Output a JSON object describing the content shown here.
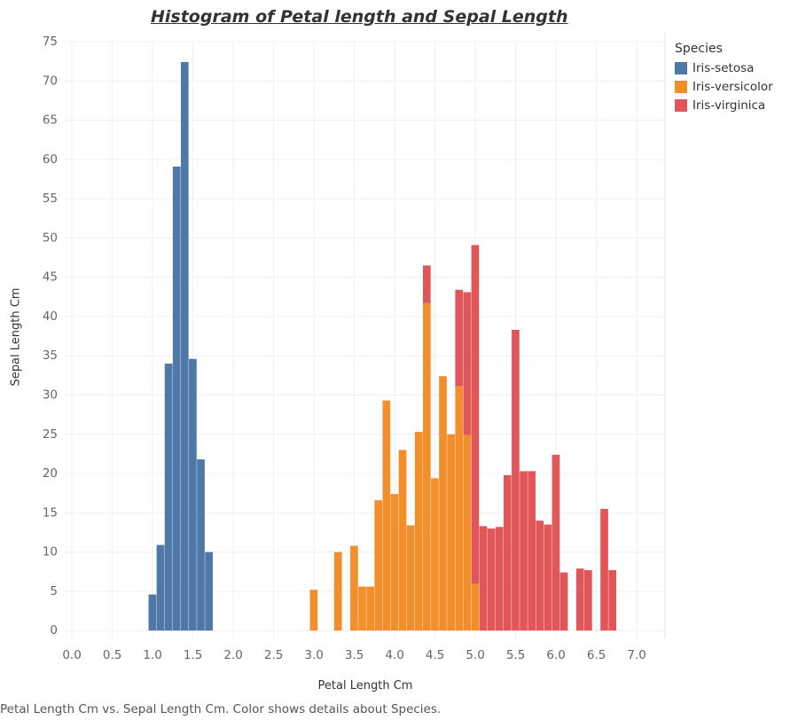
{
  "chart_data": {
    "type": "bar",
    "title": "Histogram of Petal length and Sepal Length",
    "xlabel": "Petal Length Cm",
    "ylabel": "Sepal Length Cm",
    "xlim": [
      -0.1,
      7.35
    ],
    "ylim": [
      -1,
      75
    ],
    "xticks": [
      0.0,
      0.5,
      1.0,
      1.5,
      2.0,
      2.5,
      3.0,
      3.5,
      4.0,
      4.5,
      5.0,
      5.5,
      6.0,
      6.5,
      7.0
    ],
    "xtick_labels": [
      "0.0",
      "0.5",
      "1.0",
      "1.5",
      "2.0",
      "2.5",
      "3.0",
      "3.5",
      "4.0",
      "4.5",
      "5.0",
      "5.5",
      "6.0",
      "6.5",
      "7.0"
    ],
    "yticks": [
      0,
      5,
      10,
      15,
      20,
      25,
      30,
      35,
      40,
      45,
      50,
      55,
      60,
      65,
      70,
      75
    ],
    "ytick_labels": [
      "0",
      "5",
      "10",
      "15",
      "20",
      "25",
      "30",
      "35",
      "40",
      "45",
      "50",
      "55",
      "60",
      "65",
      "70",
      "75"
    ],
    "grid": true,
    "stacked": true,
    "bin_width": 0.1,
    "legend_title": "Species",
    "legend_position": "top-right",
    "series": [
      {
        "name": "Iris-setosa",
        "color": "#4e79a7",
        "points": [
          [
            1.0,
            4.6
          ],
          [
            1.1,
            10.9
          ],
          [
            1.2,
            34.0
          ],
          [
            1.3,
            59.1
          ],
          [
            1.4,
            72.4
          ],
          [
            1.5,
            34.6
          ],
          [
            1.6,
            21.8
          ],
          [
            1.7,
            10.0
          ]
        ]
      },
      {
        "name": "Iris-versicolor",
        "color": "#f28e2b",
        "points": [
          [
            3.0,
            5.2
          ],
          [
            3.3,
            10.0
          ],
          [
            3.5,
            10.8
          ],
          [
            3.6,
            5.6
          ],
          [
            3.7,
            5.6
          ],
          [
            3.8,
            16.6
          ],
          [
            3.9,
            29.3
          ],
          [
            4.0,
            17.4
          ],
          [
            4.1,
            23.0
          ],
          [
            4.2,
            13.4
          ],
          [
            4.3,
            25.3
          ],
          [
            4.4,
            41.7
          ],
          [
            4.5,
            19.4
          ],
          [
            4.6,
            32.4
          ],
          [
            4.7,
            25.0
          ],
          [
            4.8,
            31.1
          ],
          [
            4.9,
            24.9
          ],
          [
            5.0,
            6.0
          ]
        ]
      },
      {
        "name": "Iris-virginica",
        "color": "#e15759",
        "points": [
          [
            4.4,
            4.8
          ],
          [
            4.8,
            12.3
          ],
          [
            4.9,
            18.2
          ],
          [
            5.0,
            43.1
          ],
          [
            5.1,
            13.3
          ],
          [
            5.2,
            13.0
          ],
          [
            5.3,
            13.2
          ],
          [
            5.4,
            19.8
          ],
          [
            5.5,
            38.3
          ],
          [
            5.6,
            20.3
          ],
          [
            5.7,
            20.3
          ],
          [
            5.8,
            14.0
          ],
          [
            5.9,
            13.5
          ],
          [
            6.0,
            22.4
          ],
          [
            6.1,
            7.4
          ],
          [
            6.3,
            7.9
          ],
          [
            6.4,
            7.7
          ],
          [
            6.6,
            15.5
          ],
          [
            6.7,
            7.7
          ]
        ]
      }
    ]
  },
  "caption": "Petal Length Cm vs. Sepal Length Cm.  Color shows details about Species."
}
